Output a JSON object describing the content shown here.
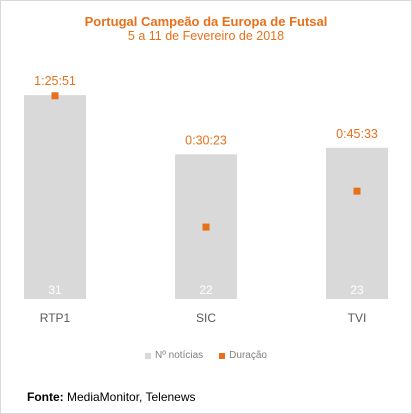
{
  "colors": {
    "title": "#e8701a",
    "bar": "#d9d9d9",
    "marker": "#e8701a",
    "bar_label": "#ffffff",
    "axis_label": "#595959",
    "legend_text": "#7f7f7f"
  },
  "chart_data": {
    "type": "bar",
    "title": "Portugal Campeão da Europa de Futsal",
    "subtitle": "5 a 11 de Fevereiro de 2018",
    "categories": [
      "RTP1",
      "SIC",
      "TVI"
    ],
    "series": [
      {
        "name": "Nº notícias",
        "type": "bar",
        "values": [
          31,
          22,
          23
        ],
        "labels": [
          "31",
          "22",
          "23"
        ]
      },
      {
        "name": "Duração",
        "type": "marker",
        "values_seconds": [
          5151,
          1823,
          2733
        ],
        "labels": [
          "1:25:51",
          "0:30:23",
          "0:45:33"
        ]
      }
    ],
    "ylim_bars": [
      0,
      33
    ],
    "ylim_markers_seconds": [
      0,
      5500
    ],
    "grid": false,
    "legend_position": "bottom"
  },
  "source": {
    "label": "Fonte:",
    "text": "MediaMonitor, Telenews"
  }
}
